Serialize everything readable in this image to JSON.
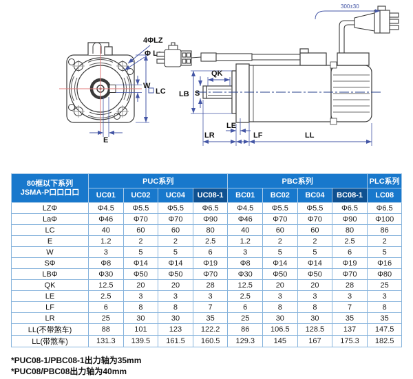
{
  "diagram": {
    "front": {
      "holes_label": "4ΦLZ",
      "circle_label": "Φ La",
      "key_width_label": "W",
      "frame_label": "LC",
      "offset_label": "E"
    },
    "side": {
      "keyway_label": "QK",
      "shaft_label": "S",
      "pilot_label": "LB",
      "spigot_label": "LE",
      "flange_label": "LF",
      "shaft_len_label": "LR",
      "body_len_label": "LL",
      "cable_label": "300±30"
    }
  },
  "table": {
    "corner_header": {
      "line1": "80框以下系列",
      "line2": "JSMA-P口口口口"
    },
    "groups": [
      {
        "label": "PUC系列",
        "span": 4
      },
      {
        "label": "PBC系列",
        "span": 4
      },
      {
        "label": "PLC系列",
        "span": 1
      }
    ],
    "columns": [
      "UC01",
      "UC02",
      "UC04",
      "UC08-1",
      "BC01",
      "BC02",
      "BC04",
      "BC08-1",
      "LC08"
    ],
    "highlight_columns": [
      "UC08-1",
      "BC08-1"
    ],
    "rows": [
      {
        "label": "LZΦ",
        "values": [
          "Φ4.5",
          "Φ5.5",
          "Φ5.5",
          "Φ6.5",
          "Φ4.5",
          "Φ5.5",
          "Φ5.5",
          "Φ6.5",
          "Φ6.5"
        ]
      },
      {
        "label": "LaΦ",
        "values": [
          "Φ46",
          "Φ70",
          "Φ70",
          "Φ90",
          "Φ46",
          "Φ70",
          "Φ70",
          "Φ90",
          "Φ100"
        ]
      },
      {
        "label": "LC",
        "values": [
          "40",
          "60",
          "60",
          "80",
          "40",
          "60",
          "60",
          "80",
          "86"
        ]
      },
      {
        "label": "E",
        "values": [
          "1.2",
          "2",
          "2",
          "2.5",
          "1.2",
          "2",
          "2",
          "2.5",
          "2"
        ]
      },
      {
        "label": "W",
        "values": [
          "3",
          "5",
          "5",
          "6",
          "3",
          "5",
          "5",
          "6",
          "5"
        ]
      },
      {
        "label": "SΦ",
        "values": [
          "Φ8",
          "Φ14",
          "Φ14",
          "Φ19",
          "Φ8",
          "Φ14",
          "Φ14",
          "Φ19",
          "Φ16"
        ]
      },
      {
        "label": "LBΦ",
        "values": [
          "Φ30",
          "Φ50",
          "Φ50",
          "Φ70",
          "Φ30",
          "Φ50",
          "Φ50",
          "Φ70",
          "Φ80"
        ]
      },
      {
        "label": "QK",
        "values": [
          "12.5",
          "20",
          "20",
          "28",
          "12.5",
          "20",
          "20",
          "28",
          "25"
        ]
      },
      {
        "label": "LE",
        "values": [
          "2.5",
          "3",
          "3",
          "3",
          "2.5",
          "3",
          "3",
          "3",
          "3"
        ]
      },
      {
        "label": "LF",
        "values": [
          "6",
          "8",
          "8",
          "7",
          "6",
          "8",
          "8",
          "7",
          "8"
        ]
      },
      {
        "label": "LR",
        "values": [
          "25",
          "30",
          "30",
          "35",
          "25",
          "30",
          "30",
          "35",
          "35"
        ]
      },
      {
        "label": "LL(不带煞车)",
        "values": [
          "88",
          "101",
          "123",
          "122.2",
          "86",
          "106.5",
          "128.5",
          "137",
          "147.5"
        ]
      },
      {
        "label": "LL(带煞车)",
        "values": [
          "131.3",
          "139.5",
          "161.5",
          "160.5",
          "129.3",
          "145",
          "167",
          "175.3",
          "182.5"
        ]
      }
    ]
  },
  "footnotes": [
    "*PUC08-1/PBC08-1出力轴为35mm",
    "*PUC08/PBC08出力轴为40mm"
  ],
  "colors": {
    "header_blue": "#1878cc",
    "header_dark": "#0f5191",
    "grid": "#86b3dc",
    "dimension": "#4355a5",
    "centerline_red": "#e07a7a",
    "linework": "#3a3a3a"
  }
}
